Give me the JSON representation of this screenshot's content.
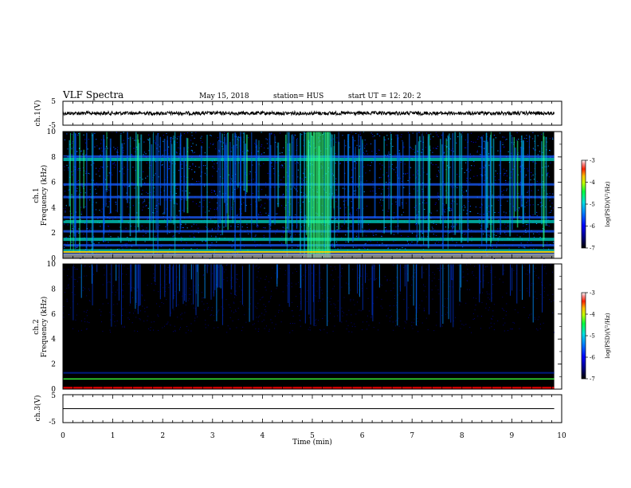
{
  "header": {
    "title": "VLF Spectra",
    "date": "May 15, 2018",
    "station": "station= HUS",
    "start_ut": "start  UT =   12: 20: 2"
  },
  "chart_data": [
    {
      "type": "line",
      "name": "ch1-waveform",
      "ylabel": "ch.1(V)",
      "ylim": [
        -5,
        5
      ],
      "y_ticks": [
        "5",
        "-5"
      ],
      "xlim": [
        0,
        10
      ],
      "trace_level": 0
    },
    {
      "type": "heatmap",
      "name": "ch1-spectrogram",
      "ylabel_lines": [
        "ch.1",
        "Frequency (kHz)"
      ],
      "ylim": [
        0,
        10
      ],
      "y_ticks": [
        0,
        2,
        4,
        6,
        8,
        10
      ],
      "xlim": [
        0,
        10
      ],
      "data_xmax": 9.85,
      "colorbar": {
        "label": "log(PSD)(V²/Hz)",
        "range": [
          -7,
          -3
        ],
        "ticks": [
          "-3",
          "-4",
          "-5",
          "-6",
          "-7"
        ]
      },
      "bands_khz": [
        0.3,
        0.6,
        1.0,
        1.5,
        2.1,
        2.9,
        3.2,
        4.8,
        5.8,
        7.8,
        8.0
      ],
      "burst_minutes": [
        4.9,
        5.35
      ]
    },
    {
      "type": "heatmap",
      "name": "ch2-spectrogram",
      "ylabel_lines": [
        "ch.2",
        "Frequency (kHz)"
      ],
      "ylim": [
        0,
        10
      ],
      "y_ticks": [
        0,
        2,
        4,
        6,
        8,
        10
      ],
      "xlim": [
        0,
        10
      ],
      "data_xmax": 9.85,
      "colorbar": {
        "label": "log(PSD)(V²/Hz)",
        "range": [
          -7,
          -3
        ],
        "ticks": [
          "-3",
          "-4",
          "-5",
          "-6",
          "-7"
        ]
      },
      "lines_khz": [
        0.0,
        0.8,
        1.3
      ]
    },
    {
      "type": "line",
      "name": "ch3-waveform",
      "ylabel": "ch.3(V)",
      "ylim": [
        -5,
        5
      ],
      "y_ticks": [
        "5",
        "-5"
      ],
      "xlim": [
        0,
        10
      ],
      "trace_level": 0
    }
  ],
  "x_axis": {
    "label": "Time (min)",
    "ticks": [
      0,
      1,
      2,
      3,
      4,
      5,
      6,
      7,
      8,
      9,
      10
    ]
  },
  "colors": {
    "spectrum_background": "#000000",
    "ch2_baseline": "#cc0000",
    "ch2_line": "#33dd33"
  }
}
